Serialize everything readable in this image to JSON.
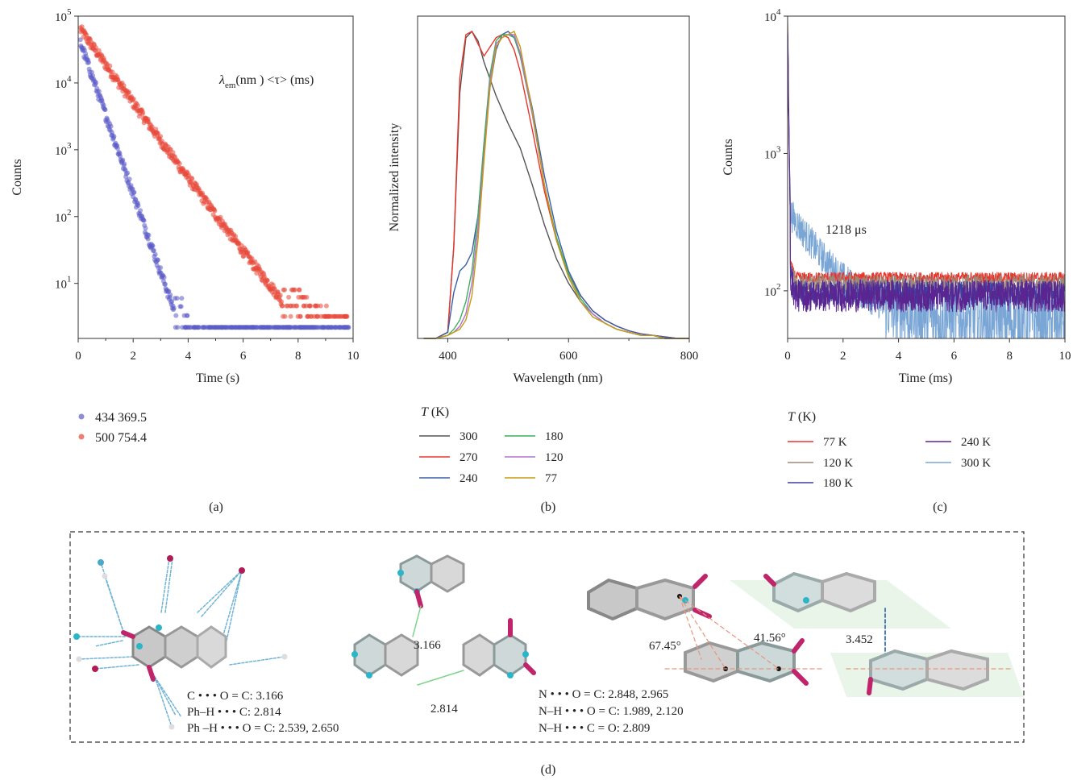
{
  "panels": {
    "a": {
      "caption": "(a)",
      "chart_data": {
        "type": "scatter",
        "xlabel": "Time (s)",
        "ylabel": "Counts",
        "xlim": [
          0,
          10
        ],
        "ylim": [
          1.5,
          100000
        ],
        "yscale": "log",
        "xticks": [
          0,
          2,
          4,
          6,
          8,
          10
        ],
        "yticks": [
          {
            "value": 10,
            "label": "10",
            "exp": "1"
          },
          {
            "value": 100,
            "label": "10",
            "exp": "2"
          },
          {
            "value": 1000,
            "label": "10",
            "exp": "3"
          },
          {
            "value": 10000,
            "label": "10",
            "exp": "4"
          },
          {
            "value": 100000,
            "label": "10",
            "exp": "5"
          }
        ],
        "annotation": {
          "lambda_sub": "em",
          "rest": "(nm ) <τ> (ms)"
        },
        "legend_placement": "below",
        "series": [
          {
            "name": "434 369.5",
            "color": "#5b5bc8",
            "decay_ms": 369.5,
            "amplitude": 50000,
            "floor": 2.2
          },
          {
            "name": "500 754.4",
            "color": "#e8483a",
            "decay_ms": 754.4,
            "amplitude": 70000,
            "floor": 3.2
          }
        ]
      }
    },
    "b": {
      "caption": "(b)",
      "chart_data": {
        "type": "line",
        "xlabel": "Wavelength (nm)",
        "ylabel": "Normalized intensity",
        "xlim": [
          350,
          800
        ],
        "ylim": [
          0,
          1.05
        ],
        "xticks": [
          400,
          600,
          800
        ],
        "legend_title": "(K)",
        "legend_title_var": "T",
        "series": [
          {
            "name": "300",
            "color": "#555555",
            "x": [
              360,
              380,
              400,
              410,
              420,
              430,
              440,
              450,
              460,
              480,
              500,
              520,
              540,
              560,
              580,
              600,
              620,
              640,
              660,
              680,
              700,
              720,
              740,
              760,
              780,
              800
            ],
            "y": [
              0.0,
              0.0,
              0.02,
              0.3,
              0.8,
              0.98,
              1.0,
              0.97,
              0.9,
              0.79,
              0.7,
              0.62,
              0.5,
              0.37,
              0.26,
              0.18,
              0.12,
              0.08,
              0.05,
              0.03,
              0.02,
              0.01,
              0.01,
              0.0,
              0.0,
              0.0
            ]
          },
          {
            "name": "270",
            "color": "#e8352c",
            "x": [
              360,
              380,
              400,
              410,
              420,
              430,
              440,
              450,
              460,
              470,
              480,
              490,
              500,
              510,
              520,
              540,
              560,
              580,
              600,
              620,
              640,
              660,
              680,
              700,
              720,
              740,
              760,
              780,
              800
            ],
            "y": [
              0.0,
              0.0,
              0.02,
              0.3,
              0.85,
              0.99,
              1.0,
              0.96,
              0.92,
              0.95,
              0.98,
              0.99,
              0.98,
              0.94,
              0.87,
              0.68,
              0.48,
              0.32,
              0.21,
              0.14,
              0.09,
              0.06,
              0.04,
              0.025,
              0.015,
              0.01,
              0.005,
              0.0,
              0.0
            ]
          },
          {
            "name": "240",
            "color": "#3a5fa8",
            "x": [
              360,
              380,
              400,
              410,
              420,
              430,
              440,
              450,
              460,
              470,
              480,
              490,
              500,
              510,
              520,
              540,
              560,
              580,
              600,
              620,
              640,
              660,
              680,
              700,
              720,
              740,
              760,
              780,
              800
            ],
            "y": [
              0.0,
              0.0,
              0.02,
              0.15,
              0.22,
              0.24,
              0.28,
              0.4,
              0.62,
              0.82,
              0.94,
              0.99,
              1.0,
              0.98,
              0.93,
              0.75,
              0.53,
              0.35,
              0.22,
              0.14,
              0.09,
              0.06,
              0.04,
              0.025,
              0.015,
              0.01,
              0.005,
              0.0,
              0.0
            ]
          },
          {
            "name": "180",
            "color": "#3cae5c",
            "x": [
              360,
              380,
              400,
              410,
              420,
              430,
              440,
              450,
              460,
              470,
              480,
              490,
              500,
              510,
              520,
              540,
              560,
              580,
              600,
              620,
              640,
              660,
              680,
              700,
              720,
              740,
              760,
              780,
              800
            ],
            "y": [
              0.0,
              0.0,
              0.01,
              0.03,
              0.06,
              0.12,
              0.22,
              0.4,
              0.64,
              0.86,
              0.97,
              0.99,
              0.99,
              0.98,
              0.92,
              0.73,
              0.5,
              0.33,
              0.21,
              0.13,
              0.08,
              0.05,
              0.03,
              0.02,
              0.01,
              0.01,
              0.0,
              0.0,
              0.0
            ]
          },
          {
            "name": "120",
            "color": "#b070d0",
            "x": [
              360,
              380,
              400,
              410,
              420,
              430,
              440,
              450,
              460,
              470,
              480,
              490,
              500,
              510,
              520,
              540,
              560,
              580,
              600,
              620,
              640,
              660,
              680,
              700,
              720,
              740,
              760,
              780,
              800
            ],
            "y": [
              0.0,
              0.0,
              0.01,
              0.02,
              0.04,
              0.08,
              0.18,
              0.36,
              0.6,
              0.84,
              0.96,
              0.98,
              0.99,
              0.99,
              0.93,
              0.73,
              0.5,
              0.32,
              0.2,
              0.12,
              0.08,
              0.05,
              0.03,
              0.02,
              0.01,
              0.01,
              0.0,
              0.0,
              0.0
            ]
          },
          {
            "name": "77",
            "color": "#c69a10",
            "x": [
              360,
              380,
              400,
              410,
              420,
              430,
              440,
              450,
              460,
              470,
              480,
              490,
              500,
              510,
              520,
              540,
              560,
              580,
              600,
              620,
              640,
              660,
              680,
              700,
              720,
              740,
              760,
              780,
              800
            ],
            "y": [
              0.0,
              0.0,
              0.01,
              0.02,
              0.03,
              0.06,
              0.14,
              0.32,
              0.58,
              0.82,
              0.95,
              0.98,
              0.99,
              1.0,
              0.95,
              0.74,
              0.5,
              0.32,
              0.2,
              0.12,
              0.07,
              0.05,
              0.03,
              0.02,
              0.01,
              0.01,
              0.0,
              0.0,
              0.0
            ]
          }
        ]
      }
    },
    "c": {
      "caption": "(c)",
      "chart_data": {
        "type": "line",
        "xlabel": "Time (ms)",
        "ylabel": "Counts",
        "xlim": [
          0,
          10
        ],
        "ylim": [
          45,
          10000
        ],
        "yscale": "log",
        "xticks": [
          0,
          2,
          4,
          6,
          8,
          10
        ],
        "yticks": [
          {
            "value": 100,
            "label": "10",
            "exp": "2"
          },
          {
            "value": 1000,
            "label": "10",
            "exp": "3"
          },
          {
            "value": 10000,
            "label": "10",
            "exp": "4"
          }
        ],
        "annotation": "1218 μs",
        "legend_title": "(K)",
        "legend_title_var": "T",
        "series": [
          {
            "name": "77 K",
            "color": "#e8352c",
            "baseline": 125,
            "noise": 0.04
          },
          {
            "name": "120 K",
            "color": "#9e8878",
            "baseline": 112,
            "noise": 0.07
          },
          {
            "name": "180 K",
            "color": "#3f3fa0",
            "baseline": 96,
            "noise": 0.09
          },
          {
            "name": "240 K",
            "color": "#5a2590",
            "baseline": 92,
            "noise": 0.12
          },
          {
            "name": "300 K",
            "color": "#7aa6d6",
            "baseline": 60,
            "noise": 0.12,
            "tail_amplitude": 330,
            "tail_decay_ms": 1.218
          }
        ]
      }
    },
    "d": {
      "caption": "(d)",
      "labels": {
        "dist1": "3.166",
        "dist2": "2.814",
        "angle1": "67.45°",
        "angle2": "41.56°",
        "dist3": "3.452"
      },
      "notes_left": [
        "C • • • O = C: 3.166",
        "Ph–H • • • C: 2.814",
        "Ph –H • • • O = C: 2.539, 2.650"
      ],
      "notes_mid": [
        "N • • • O = C: 2.848, 2.965",
        "N–H • • • O = C: 1.989, 2.120",
        "N–H • • • C = O: 2.809"
      ]
    }
  }
}
